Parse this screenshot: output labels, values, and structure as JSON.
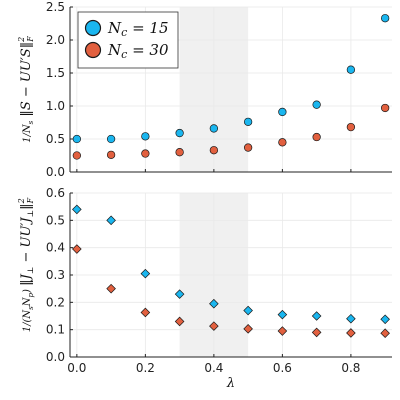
{
  "chart_data": [
    {
      "type": "scatter",
      "ylabel": "1/N_s ‖S − UU′S‖²_F",
      "xlabel": "",
      "xlim": [
        -0.02,
        0.92
      ],
      "ylim": [
        0,
        2.5
      ],
      "yticks": [
        "0.0",
        "0.5",
        "1.0",
        "1.5",
        "2.0",
        "2.5"
      ],
      "grid": true,
      "shaded_region": [
        0.3,
        0.5
      ],
      "legend_position": "top-left",
      "series": [
        {
          "name": "N_c = 15",
          "color": "#1ab6ef",
          "marker": "circle",
          "x": [
            0.0,
            0.1,
            0.2,
            0.3,
            0.4,
            0.5,
            0.6,
            0.7,
            0.8,
            0.9
          ],
          "values": [
            0.5,
            0.5,
            0.54,
            0.59,
            0.66,
            0.76,
            0.91,
            1.02,
            1.55,
            2.33
          ]
        },
        {
          "name": "N_c = 30",
          "color": "#e2603f",
          "marker": "circle",
          "x": [
            0.0,
            0.1,
            0.2,
            0.3,
            0.4,
            0.5,
            0.6,
            0.7,
            0.8,
            0.9
          ],
          "values": [
            0.25,
            0.26,
            0.28,
            0.3,
            0.33,
            0.37,
            0.45,
            0.53,
            0.68,
            0.97
          ]
        }
      ]
    },
    {
      "type": "scatter",
      "ylabel": "1/(N_s N_p) ‖J⊥ − UU′J⊥‖²_F",
      "xlabel": "λ",
      "xlim": [
        -0.02,
        0.92
      ],
      "ylim": [
        0,
        0.6
      ],
      "xticks": [
        "0.0",
        "0.2",
        "0.4",
        "0.6",
        "0.8"
      ],
      "yticks": [
        "0.0",
        "0.1",
        "0.2",
        "0.3",
        "0.4",
        "0.5",
        "0.6"
      ],
      "grid": true,
      "shaded_region": [
        0.3,
        0.5
      ],
      "series": [
        {
          "color": "#1ab6ef",
          "marker": "diamond",
          "x": [
            0.0,
            0.1,
            0.2,
            0.3,
            0.4,
            0.5,
            0.6,
            0.7,
            0.8,
            0.9
          ],
          "values": [
            0.54,
            0.5,
            0.305,
            0.23,
            0.195,
            0.17,
            0.155,
            0.15,
            0.14,
            0.138
          ]
        },
        {
          "color": "#e2603f",
          "marker": "diamond",
          "x": [
            0.0,
            0.1,
            0.2,
            0.3,
            0.4,
            0.5,
            0.6,
            0.7,
            0.8,
            0.9
          ],
          "values": [
            0.395,
            0.25,
            0.163,
            0.13,
            0.113,
            0.103,
            0.095,
            0.09,
            0.088,
            0.087
          ]
        }
      ]
    }
  ]
}
